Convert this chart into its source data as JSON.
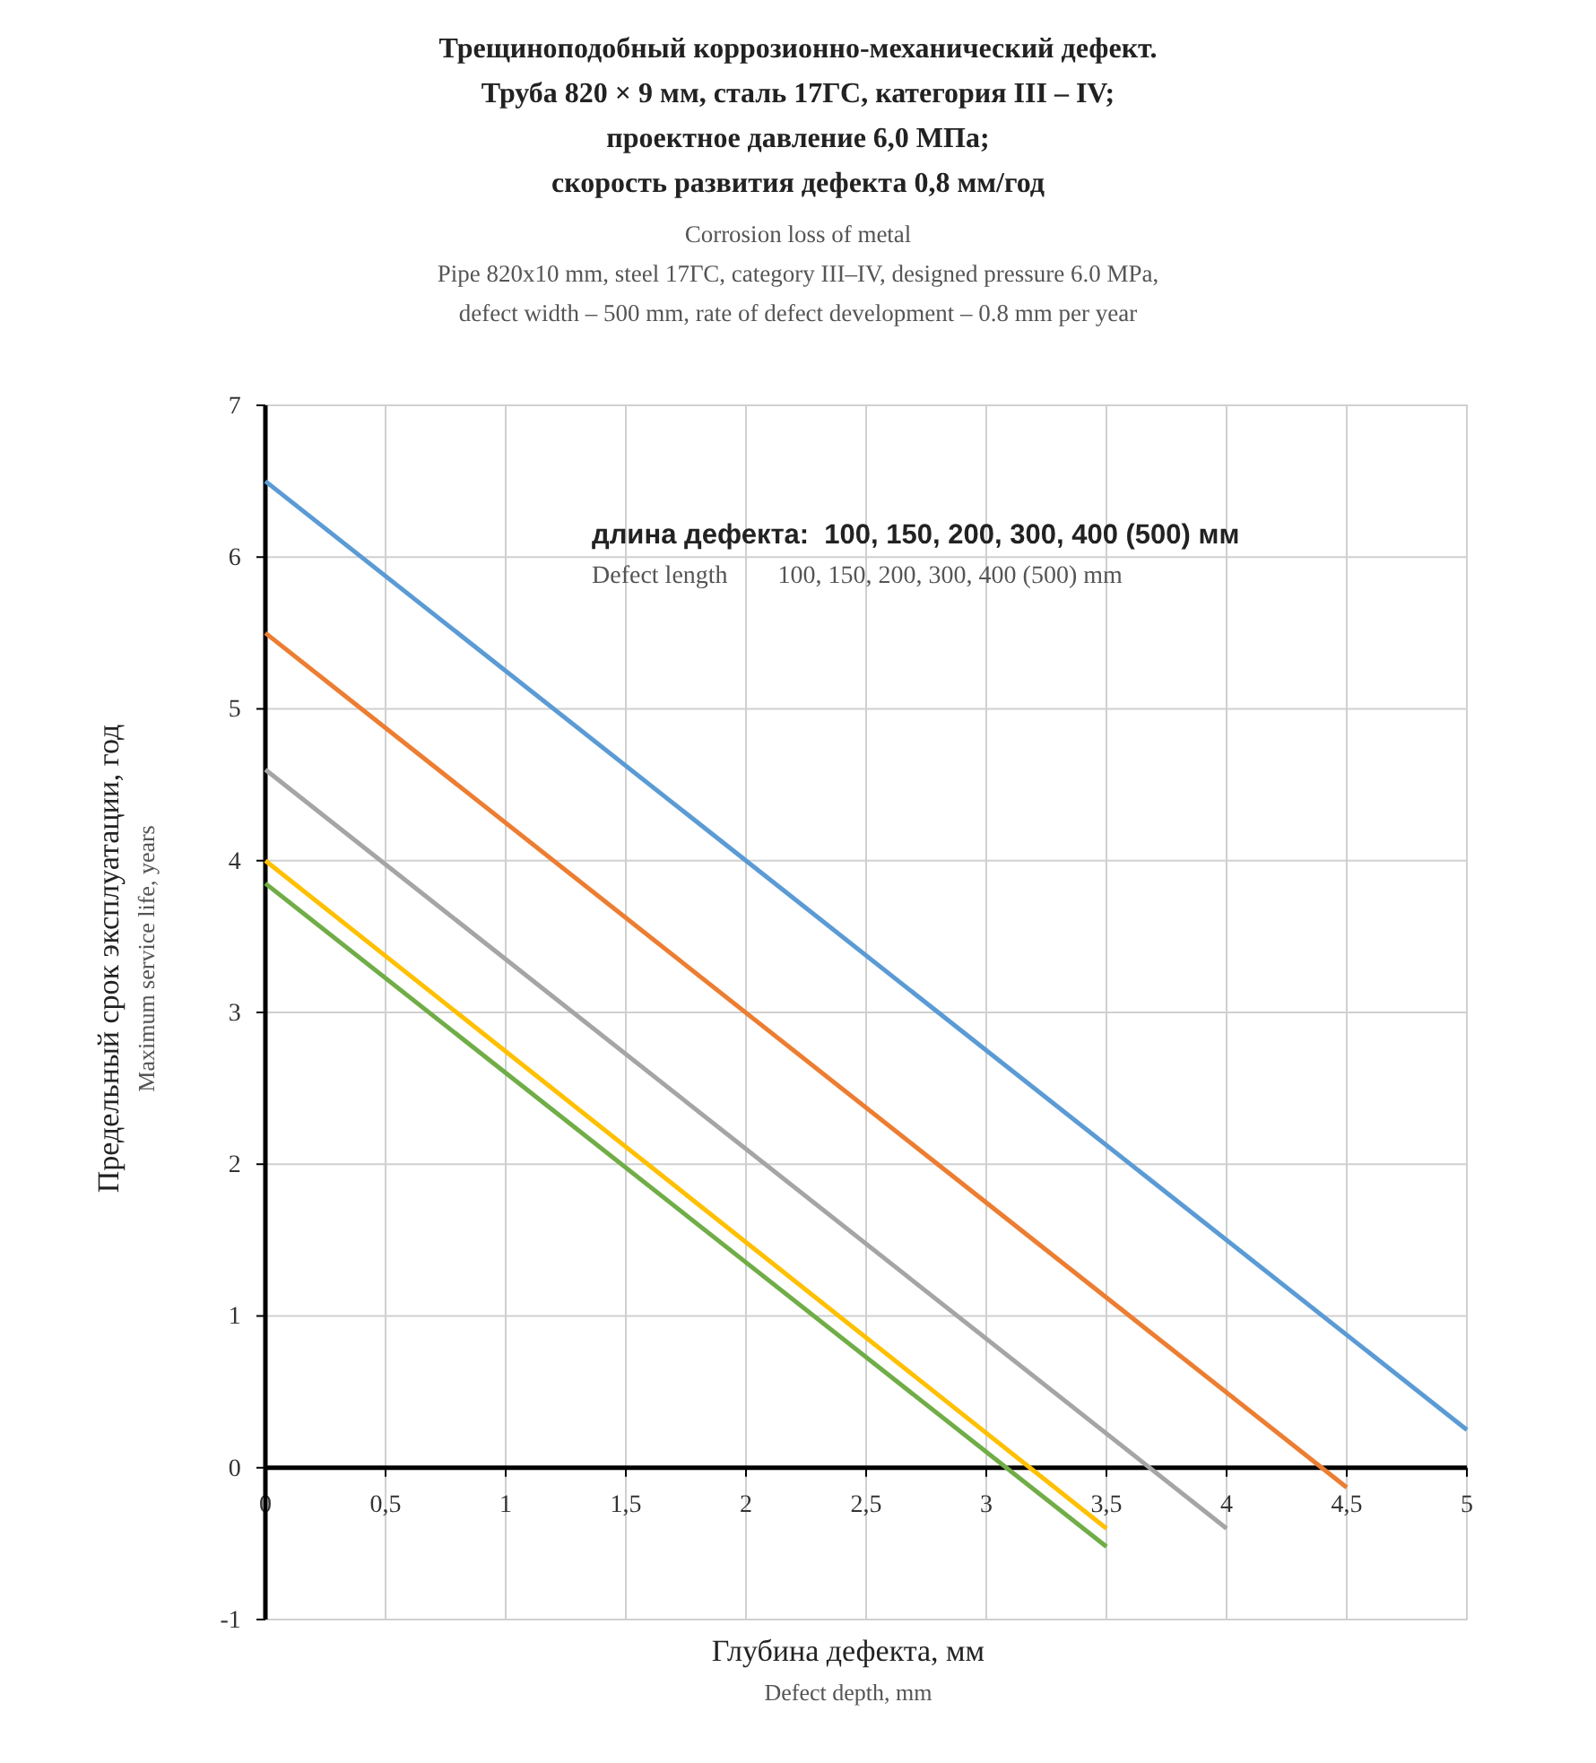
{
  "chart_data": {
    "type": "line",
    "title": "Трещиноподобный коррозионно-механический дефект.\nТруба 820 × 9 мм, сталь 17ГС, категория III – IV;\nпроектное давление 6,0 МПа;\nскорость развития дефекта 0,8 мм/год",
    "subtitle": "Corrosion loss of metal\nPipe 820x10 mm, steel 17ГС, category III–IV, designed pressure 6.0 MPa,\ndefect width – 500 mm, rate of defect development – 0.8 mm per year",
    "xlabel": "Глубина дефекта, мм\nDefect depth, mm",
    "ylabel": "Предельный срок эксплуатации, год\nMaximum service life, years",
    "annotations": [
      "длина дефекта:  100, 150, 200, 300, 400 (500) мм",
      "Defect length        100, 150, 200, 300, 400 (500) mm"
    ],
    "series": [
      {
        "color": "#5b9bd5",
        "x": [
          0,
          5
        ],
        "values": [
          6.5,
          0.25
        ]
      },
      {
        "color": "#ed7d31",
        "x": [
          0,
          4.5
        ],
        "values": [
          5.5,
          -0.13
        ]
      },
      {
        "color": "#a5a5a5",
        "x": [
          0,
          4
        ],
        "values": [
          4.6,
          -0.4
        ]
      },
      {
        "color": "#ffc000",
        "x": [
          0,
          3.5
        ],
        "values": [
          4.0,
          -0.4
        ]
      },
      {
        "color": "#70ad47",
        "x": [
          0,
          3.5
        ],
        "values": [
          3.85,
          -0.52
        ]
      }
    ],
    "xlim": [
      0,
      5
    ],
    "ylim": [
      -1,
      7
    ],
    "xticks": [
      0,
      {
        "value": 0.5,
        "label": "0,5"
      },
      1,
      {
        "value": 1.5,
        "label": "1,5"
      },
      2,
      {
        "value": 2.5,
        "label": "2,5"
      },
      3,
      {
        "value": 3.5,
        "label": "3,5"
      },
      4,
      {
        "value": 4.5,
        "label": "4,5"
      },
      5
    ],
    "yticks": [
      -1,
      0,
      1,
      2,
      3,
      4,
      5,
      6,
      7
    ],
    "grid": true,
    "marker": "none",
    "line_style": "solid"
  }
}
